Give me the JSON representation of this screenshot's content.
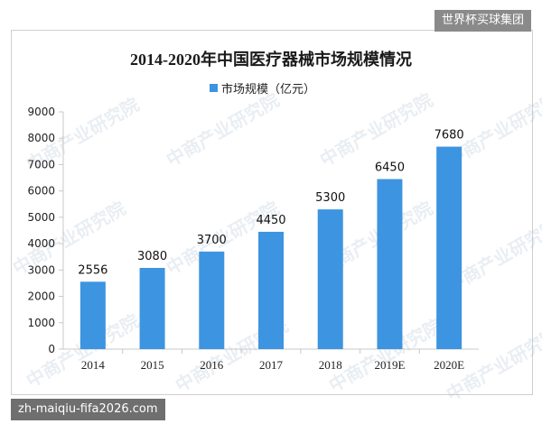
{
  "badges": {
    "top_right": "世界杯买球集团",
    "bottom_left": "zh-maiqiu-fifa2026.com"
  },
  "watermark_text": "中商产业研究院",
  "chart_data": {
    "type": "bar",
    "title": "2014-2020年中国医疗器械市场规模情况",
    "categories": [
      "2014",
      "2015",
      "2016",
      "2017",
      "2018",
      "2019E",
      "2020E"
    ],
    "series": [
      {
        "name": "市场规模（亿元）",
        "values": [
          2556,
          3080,
          3700,
          4450,
          5300,
          6450,
          7680
        ]
      }
    ],
    "data_labels": [
      "2556",
      "3080",
      "3700",
      "4450",
      "5300",
      "6450",
      "7680"
    ],
    "ylim": [
      0,
      9000
    ],
    "yticks": [
      0,
      1000,
      2000,
      3000,
      4000,
      5000,
      6000,
      7000,
      8000,
      9000
    ],
    "grid": false,
    "legend_position": "top-center",
    "bar_color": "#3d94e0"
  }
}
